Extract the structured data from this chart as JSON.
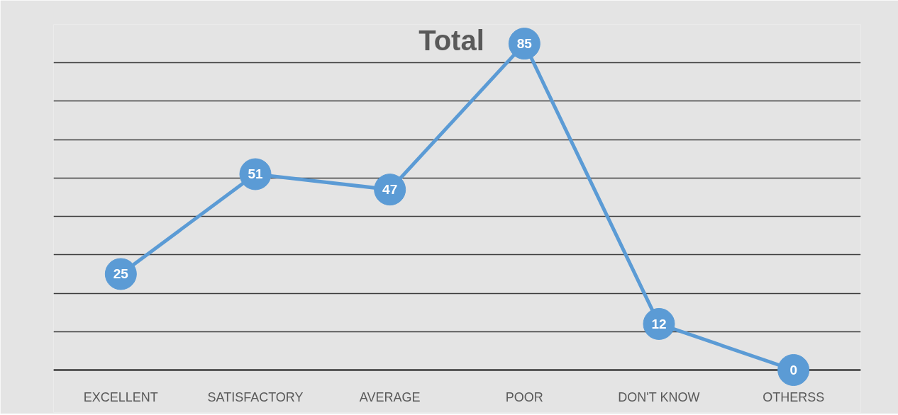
{
  "chart_data": {
    "type": "line",
    "title": "Total",
    "categories": [
      "EXCELLENT",
      "SATISFACTORY",
      "AVERAGE",
      "POOR",
      "DON'T KNOW",
      "OTHERSS"
    ],
    "values": [
      25,
      51,
      47,
      85,
      12,
      0
    ],
    "color": "#5b9bd5",
    "ylim": [
      0,
      90
    ],
    "yticks": [
      0,
      10,
      20,
      30,
      40,
      50,
      60,
      70,
      80,
      90
    ],
    "grid": "y",
    "tick_labels": "x",
    "marker": "circle",
    "line_style": "solid",
    "data_labels": true
  }
}
